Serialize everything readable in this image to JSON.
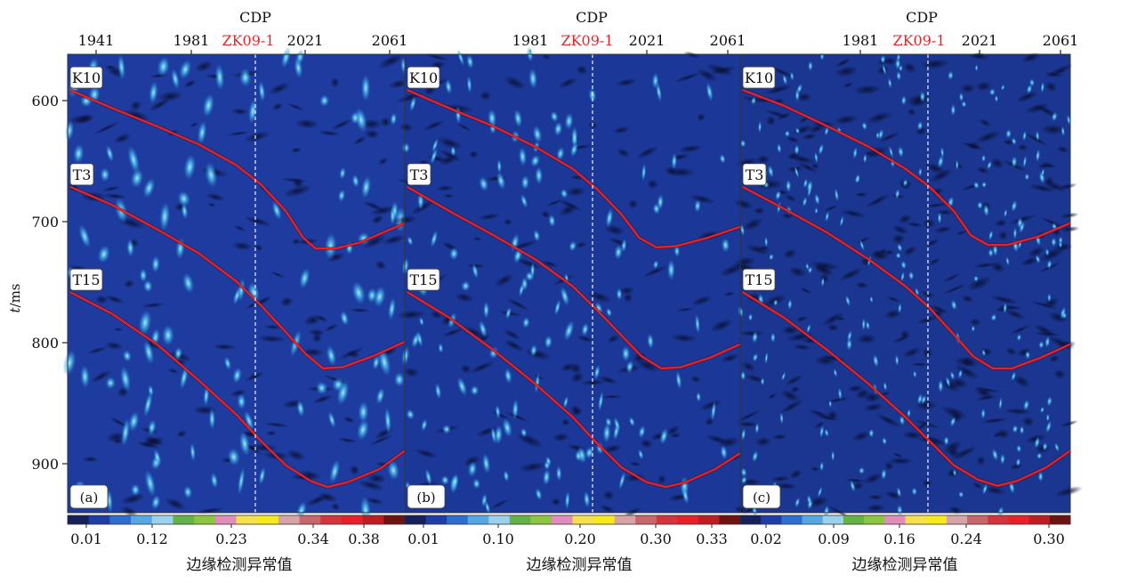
{
  "y_axis": {
    "label_italic": "t",
    "label_rest": "/ms",
    "ticks": [
      "600",
      "700",
      "800",
      "900"
    ],
    "range": [
      562,
      944
    ]
  },
  "panels": [
    {
      "id": "a",
      "tag": "(a)",
      "cdp_title": "CDP",
      "cdp_ticks": [
        {
          "label": "1941",
          "cdp": 1941
        },
        {
          "label": "1981",
          "cdp": 1981
        },
        {
          "label": "2021",
          "cdp": 2021
        },
        {
          "label": "2061",
          "cdp": 2061
        }
      ],
      "cdp_range": [
        1932,
        2068
      ],
      "well": {
        "label": "ZK09-1",
        "cdp": 2007
      },
      "colorbar_ticks": [
        "0.01",
        "0.12",
        "0.23",
        "0.34",
        "0.38"
      ],
      "colorbar_label": "边缘检测异常值",
      "background": "#1e3c9f",
      "horizons": [
        {
          "label": "K10",
          "points": [
            [
              1933,
              590
            ],
            [
              1950,
              605
            ],
            [
              1968,
              620
            ],
            [
              1985,
              635
            ],
            [
              2000,
              652
            ],
            [
              2010,
              668
            ],
            [
              2020,
              690
            ],
            [
              2027,
              712
            ],
            [
              2032,
              721
            ],
            [
              2040,
              721
            ],
            [
              2050,
              716
            ],
            [
              2068,
              700
            ]
          ]
        },
        {
          "label": "T3",
          "points": [
            [
              1933,
              670
            ],
            [
              1950,
              685
            ],
            [
              1968,
              705
            ],
            [
              1985,
              725
            ],
            [
              2000,
              748
            ],
            [
              2010,
              768
            ],
            [
              2020,
              790
            ],
            [
              2028,
              808
            ],
            [
              2035,
              820
            ],
            [
              2043,
              819
            ],
            [
              2055,
              810
            ],
            [
              2068,
              798
            ]
          ]
        },
        {
          "label": "T15",
          "points": [
            [
              1933,
              757
            ],
            [
              1950,
              775
            ],
            [
              1968,
              800
            ],
            [
              1985,
              830
            ],
            [
              2000,
              858
            ],
            [
              2010,
              880
            ],
            [
              2020,
              900
            ],
            [
              2030,
              913
            ],
            [
              2037,
              918
            ],
            [
              2045,
              914
            ],
            [
              2058,
              903
            ],
            [
              2068,
              888
            ]
          ]
        }
      ]
    },
    {
      "id": "b",
      "tag": "(b)",
      "cdp_title": "CDP",
      "cdp_ticks": [
        {
          "label": "1981",
          "cdp": 1981
        },
        {
          "label": "2021",
          "cdp": 2021
        },
        {
          "label": "2061",
          "cdp": 2061
        }
      ],
      "cdp_range": [
        1932,
        2068
      ],
      "well": {
        "label": "ZK09-1",
        "cdp": 2007
      },
      "colorbar_ticks": [
        "0.01",
        "0.10",
        "0.20",
        "0.30",
        "0.33"
      ],
      "colorbar_label": "边缘检测异常值",
      "background": "#1b3898",
      "horizons": [
        {
          "label": "K10",
          "points": [
            [
              1933,
              590
            ],
            [
              1950,
              605
            ],
            [
              1968,
              620
            ],
            [
              1985,
              637
            ],
            [
              2000,
              655
            ],
            [
              2010,
              672
            ],
            [
              2020,
              693
            ],
            [
              2027,
              712
            ],
            [
              2034,
              720
            ],
            [
              2042,
              719
            ],
            [
              2055,
              712
            ],
            [
              2068,
              703
            ]
          ]
        },
        {
          "label": "T3",
          "points": [
            [
              1933,
              670
            ],
            [
              1950,
              690
            ],
            [
              1968,
              710
            ],
            [
              1985,
              730
            ],
            [
              2000,
              752
            ],
            [
              2010,
              772
            ],
            [
              2020,
              793
            ],
            [
              2028,
              810
            ],
            [
              2036,
              820
            ],
            [
              2044,
              819
            ],
            [
              2056,
              811
            ],
            [
              2068,
              800
            ]
          ]
        },
        {
          "label": "T15",
          "points": [
            [
              1933,
              757
            ],
            [
              1950,
              778
            ],
            [
              1968,
              805
            ],
            [
              1985,
              833
            ],
            [
              2000,
              860
            ],
            [
              2010,
              882
            ],
            [
              2020,
              902
            ],
            [
              2030,
              914
            ],
            [
              2038,
              918
            ],
            [
              2046,
              914
            ],
            [
              2058,
              903
            ],
            [
              2068,
              890
            ]
          ]
        }
      ]
    },
    {
      "id": "c",
      "tag": "(c)",
      "cdp_title": "CDP",
      "cdp_ticks": [
        {
          "label": "1981",
          "cdp": 1981
        },
        {
          "label": "2021",
          "cdp": 2021
        },
        {
          "label": "2061",
          "cdp": 2061
        }
      ],
      "cdp_range": [
        1932,
        2068
      ],
      "well": {
        "label": "ZK09-1",
        "cdp": 2007
      },
      "colorbar_ticks": [
        "0.02",
        "0.09",
        "0.16",
        "0.24",
        "0.30"
      ],
      "colorbar_label": "边缘检测异常值",
      "background": "#1a3690",
      "horizons": [
        {
          "label": "K10",
          "points": [
            [
              1933,
              590
            ],
            [
              1950,
              603
            ],
            [
              1968,
              620
            ],
            [
              1985,
              637
            ],
            [
              2000,
              655
            ],
            [
              2010,
              670
            ],
            [
              2020,
              690
            ],
            [
              2027,
              710
            ],
            [
              2034,
              718
            ],
            [
              2042,
              718
            ],
            [
              2055,
              711
            ],
            [
              2068,
              700
            ]
          ]
        },
        {
          "label": "T3",
          "points": [
            [
              1933,
              670
            ],
            [
              1950,
              688
            ],
            [
              1968,
              708
            ],
            [
              1985,
              730
            ],
            [
              2000,
              752
            ],
            [
              2010,
              770
            ],
            [
              2020,
              792
            ],
            [
              2028,
              810
            ],
            [
              2036,
              820
            ],
            [
              2044,
              820
            ],
            [
              2056,
              811
            ],
            [
              2068,
              800
            ]
          ]
        },
        {
          "label": "T15",
          "points": [
            [
              1933,
              757
            ],
            [
              1950,
              778
            ],
            [
              1968,
              805
            ],
            [
              1985,
              833
            ],
            [
              2000,
              860
            ],
            [
              2010,
              880
            ],
            [
              2020,
              900
            ],
            [
              2030,
              912
            ],
            [
              2038,
              917
            ],
            [
              2046,
              913
            ],
            [
              2058,
              902
            ],
            [
              2068,
              888
            ]
          ]
        }
      ]
    }
  ],
  "colors": {
    "horizon_line": "#e8202a",
    "well_label": "#e3262b",
    "well_line": "#f2f2f2",
    "colorbar": [
      "#16205c",
      "#1f3da6",
      "#2d6fd0",
      "#54a8e4",
      "#9bd0ee",
      "#64b445",
      "#8cc63f",
      "#e28cbc",
      "#f6e04c",
      "#f6ea1a",
      "#d7a3a6",
      "#c9656c",
      "#d6343d",
      "#e8202a",
      "#c01c24",
      "#6e1212"
    ]
  }
}
